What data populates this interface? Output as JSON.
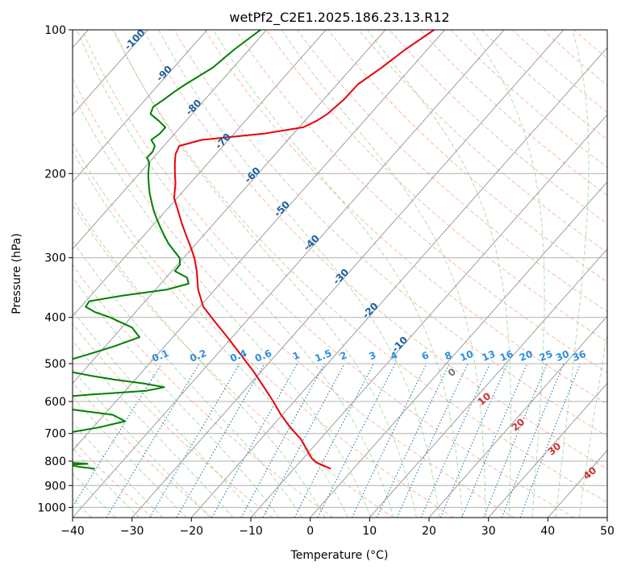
{
  "chart_data": {
    "type": "line",
    "subtype": "skew-t log-p diagram",
    "title": "wetPf2_C2E1.2025.186.23.13.R12",
    "xlabel": "Temperature (°C)",
    "ylabel": "Pressure (hPa)",
    "xlim": [
      -40,
      50
    ],
    "ylim": [
      1050,
      100
    ],
    "yscale": "log",
    "x_ticks": [
      -40,
      -30,
      -20,
      -10,
      0,
      10,
      20,
      30,
      40,
      50
    ],
    "y_ticks": [
      100,
      200,
      300,
      400,
      500,
      600,
      700,
      800,
      900,
      1000
    ],
    "grid": true,
    "colors": {
      "temperature": "#e8000b",
      "dewpoint": "#008000",
      "isotherm": "#9e9e9e",
      "dry_adiabat": "#f4a582",
      "moist_adiabat": "#8fcf8f",
      "mixing_ratio": "#1f77b4",
      "isotherm_label": "#1f5fa0",
      "mixing_label": "#2f8fe0",
      "dry_label": "#d03030"
    },
    "series": [
      {
        "name": "Temperature",
        "color": "#e8000b",
        "p": [
          830,
          815,
          805,
          790,
          760,
          720,
          680,
          640,
          600,
          560,
          520,
          480,
          440,
          410,
          380,
          350,
          320,
          300,
          285,
          270,
          255,
          240,
          225,
          210,
          200,
          190,
          182,
          175,
          170,
          165,
          160,
          155,
          150,
          140,
          130,
          120,
          110,
          100
        ],
        "t": [
          -3.8,
          -5.8,
          -7.2,
          -8.5,
          -10.5,
          -13.2,
          -16.8,
          -20.2,
          -23.5,
          -27.2,
          -31.2,
          -35.8,
          -40.8,
          -45,
          -49.4,
          -52.8,
          -55.8,
          -58.2,
          -60.4,
          -62.8,
          -65.3,
          -67.8,
          -70.5,
          -72.4,
          -74,
          -75.6,
          -76.8,
          -77.4,
          -74.5,
          -65,
          -59.3,
          -58,
          -57.2,
          -56.6,
          -56.5,
          -55,
          -53.7,
          -51.8
        ]
      },
      {
        "name": "Dewpoint",
        "color": "#008000",
        "p": [
          830,
          822,
          815,
          810,
          800,
          790,
          780,
          770,
          760,
          740,
          720,
          700,
          680,
          660,
          640,
          620,
          600,
          590,
          580,
          570,
          560,
          550,
          540,
          530,
          520,
          510,
          500,
          490,
          480,
          460,
          440,
          420,
          400,
          390,
          380,
          370,
          360,
          350,
          340,
          330,
          320,
          310,
          300,
          290,
          280,
          270,
          260,
          250,
          240,
          230,
          220,
          210,
          200,
          190,
          185,
          180,
          175,
          170,
          165,
          160,
          155,
          150,
          145,
          140,
          135,
          130,
          120,
          110,
          100
        ],
        "t": [
          -43.5,
          -46.5,
          -48.3,
          -45.5,
          -53,
          -62.5,
          -72,
          -72.5,
          -74,
          -72,
          -62,
          -54,
          -49,
          -45.5,
          -48.5,
          -58,
          -68.2,
          -62,
          -55,
          -46.5,
          -44,
          -48,
          -53.5,
          -58,
          -62,
          -64.5,
          -66.2,
          -63.8,
          -62,
          -58.5,
          -55.6,
          -58.3,
          -63.5,
          -66.8,
          -69.2,
          -69.4,
          -64.6,
          -58.1,
          -55.3,
          -56.5,
          -59.5,
          -59.6,
          -60.7,
          -62.7,
          -64.7,
          -66.5,
          -68.3,
          -70.1,
          -71.9,
          -73.6,
          -75.3,
          -76.9,
          -78.5,
          -79.9,
          -81.1,
          -81,
          -81.5,
          -83,
          -82.5,
          -82.5,
          -84.6,
          -87,
          -87.6,
          -86.9,
          -86.3,
          -85.5,
          -83.4,
          -82.5,
          -81
        ]
      }
    ],
    "isotherm_labels": [
      "-100",
      "-90",
      "-80",
      "-70",
      "-60",
      "-50",
      "-40",
      "-30",
      "-20",
      "-10"
    ],
    "mixing_ratio_labels": [
      "0.1",
      "0.2",
      "0.4",
      "0.6",
      "1",
      "1.5",
      "2",
      "3",
      "4",
      "6",
      "8",
      "10",
      "13",
      "16",
      "20",
      "25",
      "30",
      "36"
    ],
    "mixing_ratio_values_gkg": [
      0.1,
      0.2,
      0.4,
      0.6,
      1,
      1.5,
      2,
      3,
      4,
      6,
      8,
      10,
      13,
      16,
      20,
      25,
      30,
      36
    ],
    "dry_adiabat_labels": [
      "0",
      "10",
      "20",
      "30",
      "40"
    ]
  }
}
